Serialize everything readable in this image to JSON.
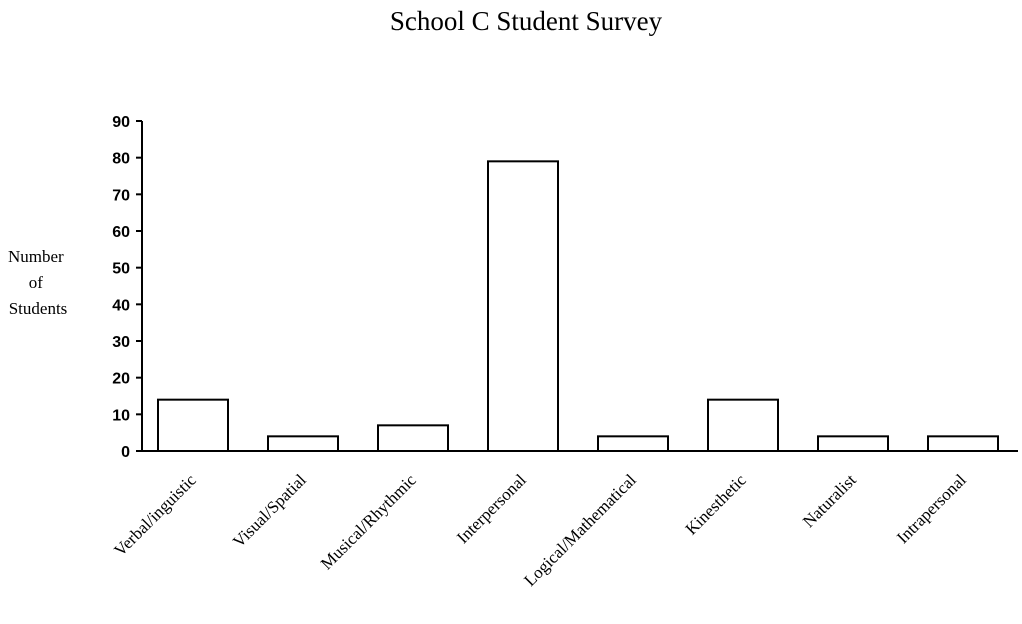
{
  "chart_data": {
    "type": "bar",
    "title": "School C Student Survey",
    "ylabel_lines": [
      "Number",
      "of",
      "Students"
    ],
    "xlabel": "",
    "categories": [
      "Verbal/inguistic",
      "Visual/Spatial",
      "Musical/Rhythmic",
      "Interpersonal",
      "Logical/Mathematical",
      "Kinesthetic",
      "Naturalist",
      "Intrapersonal"
    ],
    "values": [
      14,
      4,
      7,
      79,
      4,
      14,
      4,
      4
    ],
    "ylim": [
      0,
      90
    ],
    "yticks": [
      0,
      10,
      20,
      30,
      40,
      50,
      60,
      70,
      80,
      90
    ],
    "grid": false,
    "bar_fill": "#ffffff",
    "bar_stroke": "#000000"
  }
}
